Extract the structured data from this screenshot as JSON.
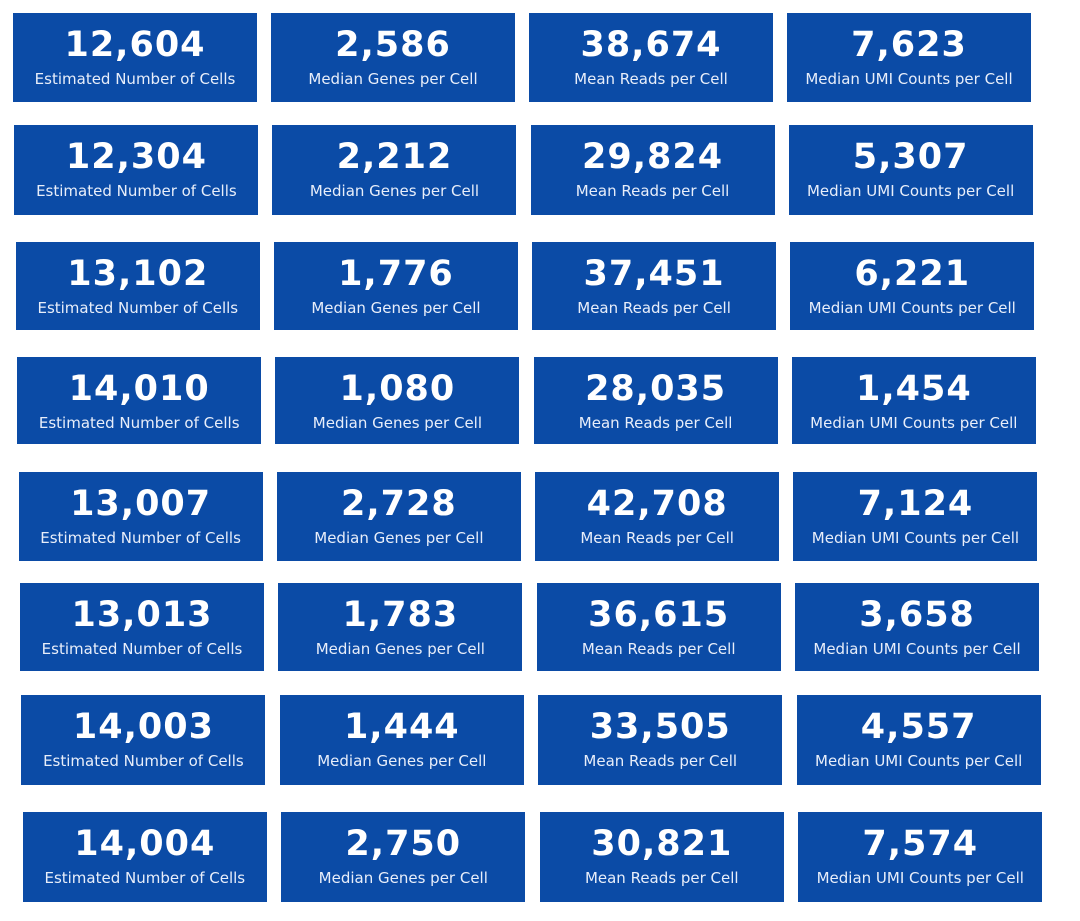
{
  "rows": [
    {
      "cells": [
        {
          "value": "12,604",
          "label": "Estimated Number of Cells"
        },
        {
          "value": "2,586",
          "label": "Median Genes per Cell"
        },
        {
          "value": "38,674",
          "label": "Mean Reads per Cell"
        },
        {
          "value": "7,623",
          "label": "Median UMI Counts per Cell"
        }
      ]
    },
    {
      "cells": [
        {
          "value": "12,304",
          "label": "Estimated Number of Cells"
        },
        {
          "value": "2,212",
          "label": "Median Genes per Cell"
        },
        {
          "value": "29,824",
          "label": "Mean Reads per Cell"
        },
        {
          "value": "5,307",
          "label": "Median UMI Counts per Cell"
        }
      ]
    },
    {
      "cells": [
        {
          "value": "13,102",
          "label": "Estimated Number of Cells"
        },
        {
          "value": "1,776",
          "label": "Median Genes per Cell"
        },
        {
          "value": "37,451",
          "label": "Mean Reads per Cell"
        },
        {
          "value": "6,221",
          "label": "Median UMI Counts per Cell"
        }
      ]
    },
    {
      "cells": [
        {
          "value": "14,010",
          "label": "Estimated Number of Cells"
        },
        {
          "value": "1,080",
          "label": "Median Genes per Cell"
        },
        {
          "value": "28,035",
          "label": "Mean Reads per Cell"
        },
        {
          "value": "1,454",
          "label": "Median UMI Counts per Cell"
        }
      ]
    },
    {
      "cells": [
        {
          "value": "13,007",
          "label": "Estimated Number of Cells"
        },
        {
          "value": "2,728",
          "label": "Median Genes per Cell"
        },
        {
          "value": "42,708",
          "label": "Mean Reads per Cell"
        },
        {
          "value": "7,124",
          "label": "Median UMI Counts per Cell"
        }
      ]
    },
    {
      "cells": [
        {
          "value": "13,013",
          "label": "Estimated Number of Cells"
        },
        {
          "value": "1,783",
          "label": "Median Genes per Cell"
        },
        {
          "value": "36,615",
          "label": "Mean Reads per Cell"
        },
        {
          "value": "3,658",
          "label": "Median UMI Counts per Cell"
        }
      ]
    },
    {
      "cells": [
        {
          "value": "14,003",
          "label": "Estimated Number of Cells"
        },
        {
          "value": "1,444",
          "label": "Median Genes per Cell"
        },
        {
          "value": "33,505",
          "label": "Mean Reads per Cell"
        },
        {
          "value": "4,557",
          "label": "Median UMI Counts per Cell"
        }
      ]
    },
    {
      "cells": [
        {
          "value": "14,004",
          "label": "Estimated Number of Cells"
        },
        {
          "value": "2,750",
          "label": "Median Genes per Cell"
        },
        {
          "value": "30,821",
          "label": "Mean Reads per Cell"
        },
        {
          "value": "7,574",
          "label": "Median UMI Counts per Cell"
        }
      ]
    }
  ]
}
